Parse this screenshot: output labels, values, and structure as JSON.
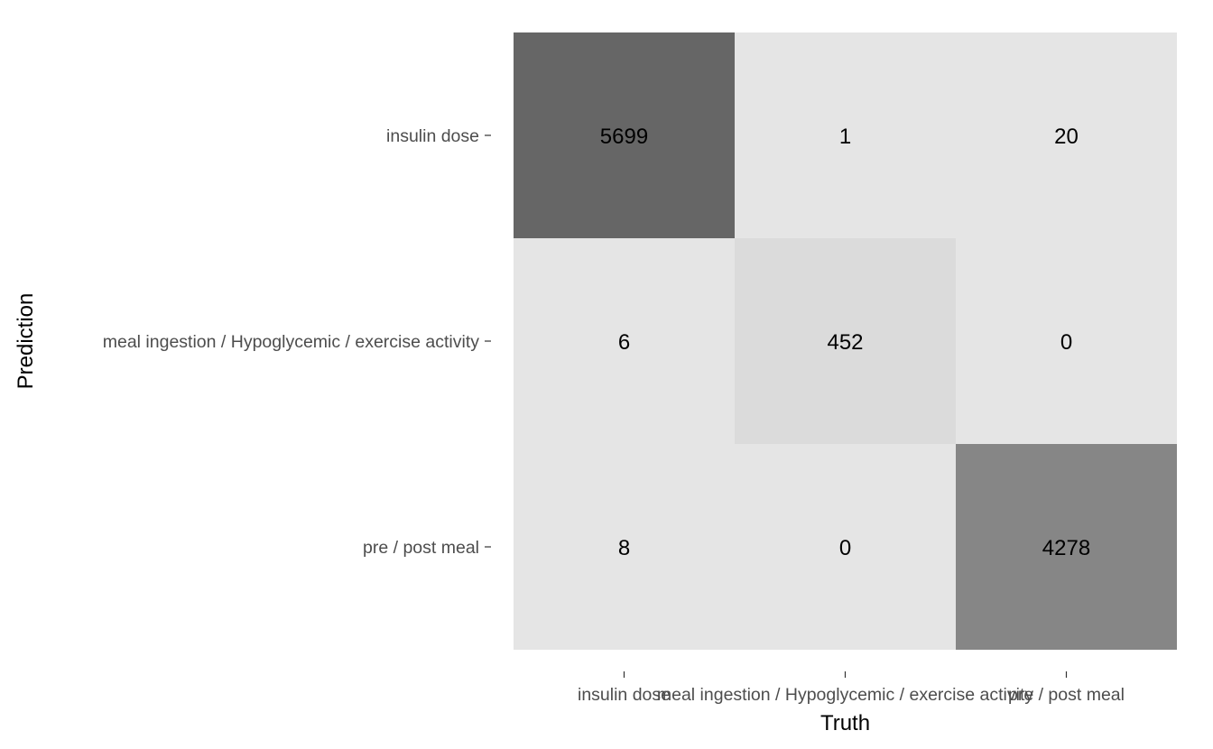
{
  "chart_data": {
    "type": "heatmap",
    "xlabel": "Truth",
    "ylabel": "Prediction",
    "x_categories": [
      "insulin dose",
      "meal ingestion / Hypoglycemic / exercise activity",
      "pre / post meal"
    ],
    "y_categories": [
      "insulin dose",
      "meal ingestion / Hypoglycemic / exercise activity",
      "pre / post meal"
    ],
    "values": [
      [
        5699,
        1,
        20
      ],
      [
        6,
        452,
        0
      ],
      [
        8,
        0,
        4278
      ]
    ],
    "color_scale": {
      "low": "#e5e5e5",
      "high": "#666666"
    },
    "grid": false,
    "legend": "none"
  }
}
